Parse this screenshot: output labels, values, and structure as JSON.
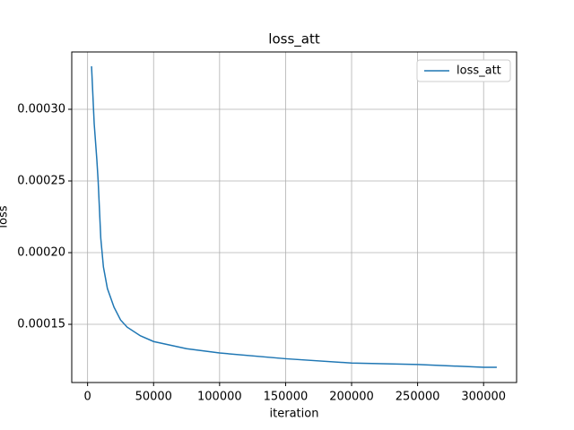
{
  "chart_data": {
    "type": "line",
    "title": "loss_att",
    "xlabel": "iteration",
    "ylabel": "loss",
    "x": [
      3000,
      5000,
      7000,
      8000,
      10000,
      12000,
      15000,
      20000,
      25000,
      30000,
      40000,
      50000,
      75000,
      100000,
      150000,
      200000,
      250000,
      300000,
      310000
    ],
    "series": [
      {
        "name": "loss_att",
        "color": "#1f77b4",
        "values": [
          0.00033,
          0.00029,
          0.000265,
          0.00025,
          0.00021,
          0.00019,
          0.000175,
          0.000162,
          0.000153,
          0.000148,
          0.000142,
          0.000138,
          0.000133,
          0.00013,
          0.000126,
          0.000123,
          0.000122,
          0.00012,
          0.00012
        ]
      }
    ],
    "xlim": [
      -12000,
      325000
    ],
    "ylim": [
      0.0001094,
      0.00034
    ],
    "xticks": [
      0,
      50000,
      100000,
      150000,
      200000,
      250000,
      300000
    ],
    "yticks": [
      {
        "value": 0.00015,
        "label": "0.00015"
      },
      {
        "value": 0.0002,
        "label": "0.00020"
      },
      {
        "value": 0.00025,
        "label": "0.00025"
      },
      {
        "value": 0.0003,
        "label": "0.00030"
      }
    ],
    "grid": true,
    "legend": "upper right"
  }
}
